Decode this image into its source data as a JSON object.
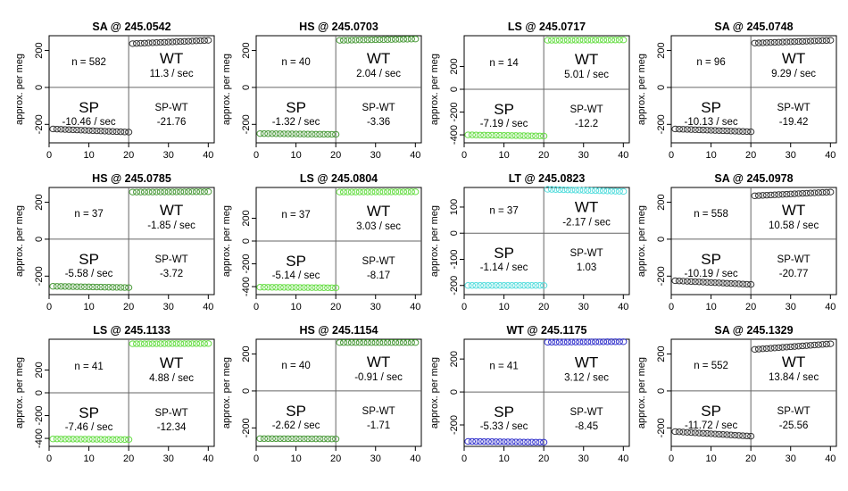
{
  "chart_data": [
    {
      "type": "scatter",
      "title": "SA @ 245.0542",
      "ylabel": "approx. per meg",
      "n_text": "n = 582",
      "wt_label": "WT",
      "wt_rate": "11.3 / sec",
      "sp_label": "SP",
      "sp_rate": "-10.46 / sec",
      "diff_label": "SP-WT",
      "diff_value": "-21.76",
      "x": [
        1,
        40
      ],
      "ylim": [
        -300,
        280
      ],
      "yticks": [
        -200,
        0,
        200
      ],
      "xticks": [
        0,
        10,
        20,
        30,
        40
      ],
      "color": "#333333",
      "sp_start": -225,
      "sp_end": -242,
      "wt_start": 237,
      "wt_end": 255
    },
    {
      "type": "scatter",
      "title": "HS @ 245.0703",
      "ylabel": "approx. per meg",
      "n_text": "n = 40",
      "wt_label": "WT",
      "wt_rate": "2.04 / sec",
      "sp_label": "SP",
      "sp_rate": "-1.32 / sec",
      "diff_label": "SP-WT",
      "diff_value": "-3.36",
      "x": [
        1,
        40
      ],
      "ylim": [
        -300,
        280
      ],
      "yticks": [
        -200,
        0,
        200
      ],
      "xticks": [
        0,
        10,
        20,
        30,
        40
      ],
      "color": "#4a9a3a",
      "sp_start": -250,
      "sp_end": -254,
      "wt_start": 255,
      "wt_end": 262
    },
    {
      "type": "scatter",
      "title": "LS @ 245.0717",
      "ylabel": "approx. per meg",
      "n_text": "n = 14",
      "wt_label": "WT",
      "wt_rate": "5.01 / sec",
      "sp_label": "SP",
      "sp_rate": "-7.19 / sec",
      "diff_label": "SP-WT",
      "diff_value": "-12.2",
      "x": [
        1,
        40
      ],
      "ylim": [
        -470,
        470
      ],
      "yticks": [
        -400,
        -200,
        0,
        200
      ],
      "xticks": [
        0,
        10,
        20,
        30,
        40
      ],
      "color": "#66dd44",
      "sp_start": -400,
      "sp_end": -410,
      "wt_start": 430,
      "wt_end": 433
    },
    {
      "type": "scatter",
      "title": "SA @ 245.0748",
      "ylabel": "approx. per meg",
      "n_text": "n = 96",
      "wt_label": "WT",
      "wt_rate": "9.29 / sec",
      "sp_label": "SP",
      "sp_rate": "-10.13 / sec",
      "diff_label": "SP-WT",
      "diff_value": "-19.42",
      "x": [
        1,
        40
      ],
      "ylim": [
        -300,
        280
      ],
      "yticks": [
        -200,
        0,
        200
      ],
      "xticks": [
        0,
        10,
        20,
        30,
        40
      ],
      "color": "#333333",
      "sp_start": -225,
      "sp_end": -240,
      "wt_start": 240,
      "wt_end": 255
    },
    {
      "type": "scatter",
      "title": "HS @ 245.0785",
      "ylabel": "approx. per meg",
      "n_text": "n = 37",
      "wt_label": "WT",
      "wt_rate": "-1.85 / sec",
      "sp_label": "SP",
      "sp_rate": "-5.58 / sec",
      "diff_label": "SP-WT",
      "diff_value": "-3.72",
      "x": [
        1,
        40
      ],
      "ylim": [
        -300,
        280
      ],
      "yticks": [
        -200,
        0,
        200
      ],
      "xticks": [
        0,
        10,
        20,
        30,
        40
      ],
      "color": "#4a9a3a",
      "sp_start": -255,
      "sp_end": -262,
      "wt_start": 255,
      "wt_end": 257
    },
    {
      "type": "scatter",
      "title": "LS @ 245.0804",
      "ylabel": "approx. per meg",
      "n_text": "n = 37",
      "wt_label": "WT",
      "wt_rate": "3.03 / sec",
      "sp_label": "SP",
      "sp_rate": "-5.14 / sec",
      "diff_label": "SP-WT",
      "diff_value": "-8.17",
      "x": [
        1,
        40
      ],
      "ylim": [
        -470,
        470
      ],
      "yticks": [
        -400,
        -200,
        0,
        200
      ],
      "xticks": [
        0,
        10,
        20,
        30,
        40
      ],
      "color": "#66dd44",
      "sp_start": -405,
      "sp_end": -410,
      "wt_start": 430,
      "wt_end": 432
    },
    {
      "type": "scatter",
      "title": "LT @ 245.0823",
      "ylabel": "approx. per meg",
      "n_text": "n = 37",
      "wt_label": "WT",
      "wt_rate": "-2.17 / sec",
      "sp_label": "SP",
      "sp_rate": "-1.14 / sec",
      "diff_label": "SP-WT",
      "diff_value": "1.03",
      "x": [
        1,
        40
      ],
      "ylim": [
        -235,
        175
      ],
      "yticks": [
        -200,
        -100,
        0,
        100
      ],
      "xticks": [
        0,
        10,
        20,
        30,
        40
      ],
      "color": "#55dddd",
      "sp_start": -200,
      "sp_end": -200,
      "wt_start": 168,
      "wt_end": 160
    },
    {
      "type": "scatter",
      "title": "SA @ 245.0978",
      "ylabel": "approx. per meg",
      "n_text": "n = 558",
      "wt_label": "WT",
      "wt_rate": "10.58 / sec",
      "sp_label": "SP",
      "sp_rate": "-10.19 / sec",
      "diff_label": "SP-WT",
      "diff_value": "-20.77",
      "x": [
        1,
        40
      ],
      "ylim": [
        -300,
        280
      ],
      "yticks": [
        -200,
        0,
        200
      ],
      "xticks": [
        0,
        10,
        20,
        30,
        40
      ],
      "color": "#333333",
      "sp_start": -225,
      "sp_end": -245,
      "wt_start": 235,
      "wt_end": 255
    },
    {
      "type": "scatter",
      "title": "LS @ 245.1133",
      "ylabel": "approx. per meg",
      "n_text": "n = 41",
      "wt_label": "WT",
      "wt_rate": "4.88 / sec",
      "sp_label": "SP",
      "sp_rate": "-7.46 / sec",
      "diff_label": "SP-WT",
      "diff_value": "-12.34",
      "x": [
        1,
        40
      ],
      "ylim": [
        -470,
        470
      ],
      "yticks": [
        -400,
        -200,
        0,
        200
      ],
      "xticks": [
        0,
        10,
        20,
        30,
        40
      ],
      "color": "#66dd44",
      "sp_start": -405,
      "sp_end": -410,
      "wt_start": 430,
      "wt_end": 432
    },
    {
      "type": "scatter",
      "title": "HS @ 245.1154",
      "ylabel": "approx. per meg",
      "n_text": "n = 40",
      "wt_label": "WT",
      "wt_rate": "-0.91 / sec",
      "sp_label": "SP",
      "sp_rate": "-2.62 / sec",
      "diff_label": "SP-WT",
      "diff_value": "-1.71",
      "x": [
        1,
        40
      ],
      "ylim": [
        -300,
        280
      ],
      "yticks": [
        -200,
        0,
        200
      ],
      "xticks": [
        0,
        10,
        20,
        30,
        40
      ],
      "color": "#4a9a3a",
      "sp_start": -258,
      "sp_end": -260,
      "wt_start": 262,
      "wt_end": 262
    },
    {
      "type": "scatter",
      "title": "WT @ 245.1175",
      "ylabel": "approx. per meg",
      "n_text": "n = 41",
      "wt_label": "WT",
      "wt_rate": "3.12 / sec",
      "sp_label": "SP",
      "sp_rate": "-5.33 / sec",
      "diff_label": "SP-WT",
      "diff_value": "-8.45",
      "x": [
        1,
        40
      ],
      "ylim": [
        -330,
        320
      ],
      "yticks": [
        -200,
        0,
        200
      ],
      "xticks": [
        0,
        10,
        20,
        30,
        40
      ],
      "color": "#3333cc",
      "sp_start": -300,
      "sp_end": -305,
      "wt_start": 302,
      "wt_end": 305
    },
    {
      "type": "scatter",
      "title": "SA @ 245.1329",
      "ylabel": "approx. per meg",
      "n_text": "n = 552",
      "wt_label": "WT",
      "wt_rate": "13.84 / sec",
      "sp_label": "SP",
      "sp_rate": "-11.72 / sec",
      "diff_label": "SP-WT",
      "diff_value": "-25.56",
      "x": [
        1,
        40
      ],
      "ylim": [
        -300,
        280
      ],
      "yticks": [
        -200,
        0,
        200
      ],
      "xticks": [
        0,
        10,
        20,
        30,
        40
      ],
      "color": "#333333",
      "sp_start": -220,
      "sp_end": -245,
      "wt_start": 225,
      "wt_end": 255
    }
  ]
}
